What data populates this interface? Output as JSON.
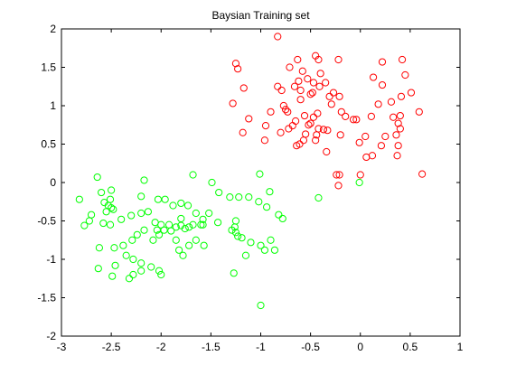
{
  "chart_data": {
    "type": "scatter",
    "title": "Baysian Training set",
    "xlabel": "",
    "ylabel": "",
    "xlim": [
      -3,
      1
    ],
    "ylim": [
      -2,
      2
    ],
    "xticks": [
      "-3",
      "-2.5",
      "-2",
      "-1.5",
      "-1",
      "-0.5",
      "0",
      "0.5",
      "1"
    ],
    "yticks": [
      "-2",
      "-1.5",
      "-1",
      "-0.5",
      "0",
      "0.5",
      "1",
      "1.5",
      "2"
    ],
    "grid": false,
    "marker": "open-circle",
    "series": [
      {
        "color": "#ff0000",
        "points": [
          [
            -0.83,
            1.9
          ],
          [
            -0.45,
            1.65
          ],
          [
            -0.63,
            1.6
          ],
          [
            -0.22,
            1.6
          ],
          [
            -0.42,
            1.6
          ],
          [
            0.42,
            1.6
          ],
          [
            0.22,
            1.57
          ],
          [
            -1.25,
            1.55
          ],
          [
            -1.23,
            1.48
          ],
          [
            -0.71,
            1.5
          ],
          [
            -0.58,
            1.45
          ],
          [
            -0.4,
            1.42
          ],
          [
            0.45,
            1.4
          ],
          [
            0.13,
            1.37
          ],
          [
            -0.53,
            1.35
          ],
          [
            -0.62,
            1.32
          ],
          [
            -0.47,
            1.3
          ],
          [
            -0.35,
            1.3
          ],
          [
            -0.41,
            1.25
          ],
          [
            -0.66,
            1.25
          ],
          [
            0.22,
            1.27
          ],
          [
            -1.17,
            1.23
          ],
          [
            -0.6,
            1.2
          ],
          [
            -0.48,
            1.17
          ],
          [
            -0.27,
            1.17
          ],
          [
            -0.5,
            1.15
          ],
          [
            -0.31,
            1.12
          ],
          [
            -0.83,
            1.25
          ],
          [
            -0.79,
            1.2
          ],
          [
            -0.21,
            1.12
          ],
          [
            0.41,
            1.12
          ],
          [
            0.51,
            1.17
          ],
          [
            -0.6,
            1.08
          ],
          [
            -0.77,
            1.0
          ],
          [
            -0.29,
            1.02
          ],
          [
            -1.28,
            1.03
          ],
          [
            -0.75,
            0.95
          ],
          [
            -0.73,
            0.92
          ],
          [
            -0.19,
            0.92
          ],
          [
            -0.43,
            0.9
          ],
          [
            0.18,
            1.02
          ],
          [
            0.31,
            1.05
          ],
          [
            -0.56,
            0.87
          ],
          [
            -0.47,
            0.85
          ],
          [
            -0.65,
            0.8
          ],
          [
            -0.5,
            0.77
          ],
          [
            -0.52,
            0.75
          ],
          [
            0.4,
            0.87
          ],
          [
            0.38,
            0.77
          ],
          [
            -1.12,
            0.83
          ],
          [
            -0.9,
            0.92
          ],
          [
            0.11,
            0.86
          ],
          [
            0.33,
            0.85
          ],
          [
            0.59,
            0.92
          ],
          [
            -0.42,
            0.7
          ],
          [
            -0.33,
            0.68
          ],
          [
            -0.68,
            0.74
          ],
          [
            -0.72,
            0.7
          ],
          [
            -0.95,
            0.74
          ],
          [
            -0.8,
            0.65
          ],
          [
            -1.18,
            0.65
          ],
          [
            -0.55,
            0.63
          ],
          [
            -0.44,
            0.62
          ],
          [
            -0.04,
            0.82
          ],
          [
            -0.07,
            0.82
          ],
          [
            -0.2,
            0.62
          ],
          [
            0.05,
            0.6
          ],
          [
            0.25,
            0.6
          ],
          [
            0.36,
            0.62
          ],
          [
            0.4,
            0.7
          ],
          [
            -0.57,
            0.55
          ],
          [
            -0.61,
            0.5
          ],
          [
            -0.64,
            0.48
          ],
          [
            -0.96,
            0.55
          ],
          [
            -0.01,
            0.52
          ],
          [
            0.21,
            0.48
          ],
          [
            0.38,
            0.48
          ],
          [
            -0.34,
            0.4
          ],
          [
            0.12,
            0.35
          ],
          [
            0.06,
            0.33
          ],
          [
            0.37,
            0.35
          ],
          [
            -0.24,
            0.1
          ],
          [
            -0.21,
            0.1
          ],
          [
            0.0,
            0.1
          ],
          [
            -0.22,
            -0.04
          ],
          [
            0.62,
            0.11
          ],
          [
            -0.37,
            0.69
          ],
          [
            -0.15,
            0.86
          ],
          [
            -0.45,
            0.55
          ]
        ]
      },
      {
        "color": "#00ff00",
        "points": [
          [
            -2.82,
            -0.22
          ],
          [
            -2.64,
            0.07
          ],
          [
            -2.6,
            -0.13
          ],
          [
            -2.5,
            -0.1
          ],
          [
            -2.51,
            -0.22
          ],
          [
            -2.57,
            -0.26
          ],
          [
            -2.53,
            -0.3
          ],
          [
            -2.5,
            -0.33
          ],
          [
            -2.48,
            -0.35
          ],
          [
            -2.55,
            -0.38
          ],
          [
            -2.7,
            -0.42
          ],
          [
            -2.72,
            -0.5
          ],
          [
            -2.77,
            -0.56
          ],
          [
            -2.58,
            -0.53
          ],
          [
            -2.51,
            -0.55
          ],
          [
            -2.4,
            -0.48
          ],
          [
            -2.3,
            -0.43
          ],
          [
            -2.2,
            -0.4
          ],
          [
            -2.13,
            -0.38
          ],
          [
            -2.2,
            -0.18
          ],
          [
            -2.17,
            0.03
          ],
          [
            -2.03,
            -0.22
          ],
          [
            -1.96,
            -0.22
          ],
          [
            -1.88,
            -0.3
          ],
          [
            -1.8,
            -0.27
          ],
          [
            -1.73,
            -0.3
          ],
          [
            -1.68,
            0.1
          ],
          [
            -1.49,
            0.0
          ],
          [
            -1.42,
            -0.13
          ],
          [
            -1.31,
            -0.19
          ],
          [
            -1.12,
            -0.19
          ],
          [
            -1.01,
            0.11
          ],
          [
            -0.91,
            -0.12
          ],
          [
            -1.22,
            -0.19
          ],
          [
            -1.02,
            -0.25
          ],
          [
            -0.94,
            -0.32
          ],
          [
            -0.82,
            -0.42
          ],
          [
            -0.78,
            -0.47
          ],
          [
            -0.42,
            -0.2
          ],
          [
            -0.01,
            0.0
          ],
          [
            -2.06,
            -0.52
          ],
          [
            -2.0,
            -0.55
          ],
          [
            -1.97,
            -0.62
          ],
          [
            -1.9,
            -0.63
          ],
          [
            -1.85,
            -0.58
          ],
          [
            -1.8,
            -0.56
          ],
          [
            -1.76,
            -0.6
          ],
          [
            -1.72,
            -0.58
          ],
          [
            -1.68,
            -0.55
          ],
          [
            -1.6,
            -0.55
          ],
          [
            -1.58,
            -0.48
          ],
          [
            -1.65,
            -0.4
          ],
          [
            -1.8,
            -0.47
          ],
          [
            -1.92,
            -0.55
          ],
          [
            -2.04,
            -0.62
          ],
          [
            -2.02,
            -0.68
          ],
          [
            -2.08,
            -0.75
          ],
          [
            -2.17,
            -0.62
          ],
          [
            -2.24,
            -0.68
          ],
          [
            -2.29,
            -0.75
          ],
          [
            -2.38,
            -0.82
          ],
          [
            -2.47,
            -0.85
          ],
          [
            -2.62,
            -0.85
          ],
          [
            -2.35,
            -0.95
          ],
          [
            -2.28,
            -1.0
          ],
          [
            -2.2,
            -1.05
          ],
          [
            -2.1,
            -1.1
          ],
          [
            -2.02,
            -1.15
          ],
          [
            -2.0,
            -1.2
          ],
          [
            -2.28,
            -1.2
          ],
          [
            -2.32,
            -1.25
          ],
          [
            -2.2,
            -1.15
          ],
          [
            -2.46,
            -1.08
          ],
          [
            -2.49,
            -1.22
          ],
          [
            -2.63,
            -1.12
          ],
          [
            -1.85,
            -0.75
          ],
          [
            -1.82,
            -0.88
          ],
          [
            -1.78,
            -0.95
          ],
          [
            -1.72,
            -0.82
          ],
          [
            -1.65,
            -0.75
          ],
          [
            -1.57,
            -0.82
          ],
          [
            -1.58,
            -0.55
          ],
          [
            -1.25,
            -0.5
          ],
          [
            -1.26,
            -0.58
          ],
          [
            -1.25,
            -0.65
          ],
          [
            -1.23,
            -0.7
          ],
          [
            -1.29,
            -0.62
          ],
          [
            -1.19,
            -0.72
          ],
          [
            -1.1,
            -0.78
          ],
          [
            -1.0,
            -0.82
          ],
          [
            -0.9,
            -0.75
          ],
          [
            -0.86,
            -0.88
          ],
          [
            -0.96,
            -0.88
          ],
          [
            -1.15,
            -0.95
          ],
          [
            -1.27,
            -1.18
          ],
          [
            -1.0,
            -1.6
          ],
          [
            -1.43,
            -0.52
          ],
          [
            -1.52,
            -0.4
          ]
        ]
      }
    ]
  }
}
